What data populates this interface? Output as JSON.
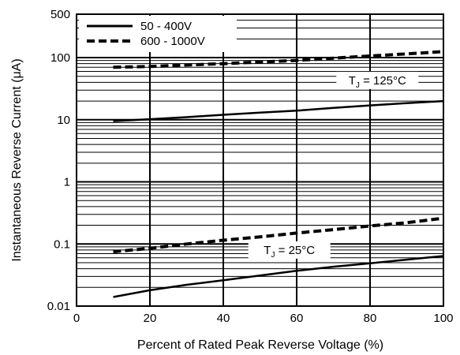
{
  "chart_data": {
    "type": "line",
    "title": "",
    "xlabel": "Percent of Rated Peak Reverse Voltage (%)",
    "ylabel": "Instantaneous Reverse Current (μA)",
    "xlim": [
      0,
      100
    ],
    "ylim": [
      0.01,
      500
    ],
    "yscale": "log",
    "grid": true,
    "legend_position": "top-left",
    "x_ticks": [
      "0",
      "20",
      "40",
      "60",
      "80",
      "100"
    ],
    "x_tick_values": [
      0,
      20,
      40,
      60,
      80,
      100
    ],
    "y_ticks": [
      "0.01",
      "0.1",
      "1",
      "10",
      "100",
      "500"
    ],
    "y_tick_values": [
      0.01,
      0.1,
      1,
      10,
      100,
      500
    ],
    "legend": [
      {
        "label": "50 - 400V",
        "style": "solid"
      },
      {
        "label": "600 - 1000V",
        "style": "dashed"
      }
    ],
    "annotations": [
      {
        "text": "T_J = 125°C",
        "main": "T",
        "sub": "J",
        "rest": " = 125°C",
        "x": 82,
        "y": 43
      },
      {
        "text": "T_J = 25°C",
        "main": "T",
        "sub": "J",
        "rest": " = 25°C",
        "x": 58,
        "y": 0.08
      }
    ],
    "series": [
      {
        "name": "50 - 400V",
        "condition": "TJ = 125°C",
        "style": "solid",
        "x": [
          10,
          20,
          30,
          40,
          50,
          60,
          70,
          80,
          90,
          100
        ],
        "y": [
          9.5,
          10.2,
          11,
          12,
          13,
          14,
          15.5,
          17,
          18.5,
          20
        ]
      },
      {
        "name": "600 - 1000V",
        "condition": "TJ = 125°C",
        "style": "dashed",
        "x": [
          10,
          20,
          30,
          40,
          50,
          60,
          70,
          80,
          90,
          100
        ],
        "y": [
          70,
          72,
          76,
          80,
          85,
          90,
          98,
          106,
          115,
          125
        ]
      },
      {
        "name": "50 - 400V",
        "condition": "TJ = 25°C",
        "style": "solid",
        "x": [
          10,
          20,
          30,
          40,
          50,
          60,
          70,
          80,
          90,
          100
        ],
        "y": [
          0.014,
          0.018,
          0.022,
          0.026,
          0.031,
          0.037,
          0.043,
          0.049,
          0.056,
          0.064
        ]
      },
      {
        "name": "600 - 1000V",
        "condition": "TJ = 25°C",
        "style": "dashed",
        "x": [
          10,
          20,
          30,
          40,
          50,
          60,
          70,
          80,
          90,
          100
        ],
        "y": [
          0.075,
          0.085,
          0.1,
          0.115,
          0.13,
          0.15,
          0.17,
          0.195,
          0.22,
          0.26
        ]
      }
    ],
    "colors": {
      "lines": "#000000",
      "grid": "#000000",
      "background": "#ffffff"
    }
  }
}
